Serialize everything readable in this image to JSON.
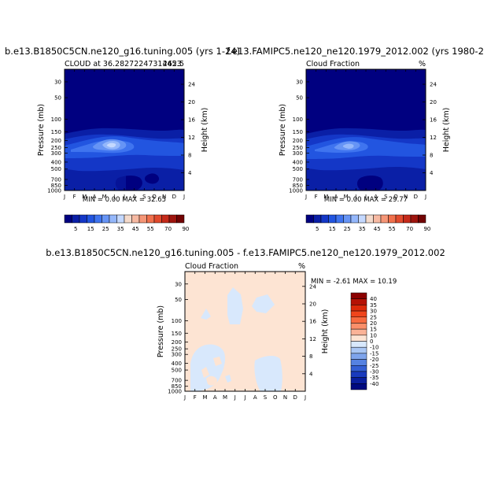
{
  "figure": {
    "panel_left_title": "b.e13.B1850C5CN.ne120_g16.tuning.005 (yrs 1-24)",
    "panel_right_title": "f.e13.FAMIPC5.ne120_ne120.1979_2012.002 (yrs 1980-2",
    "diff_title": "b.e13.B1850C5CN.ne120_g16.tuning.005 - f.e13.FAMIPC5.ne120_ne120.1979_2012.002"
  },
  "chart_data": [
    {
      "type": "heatmap",
      "title": "b.e13.B1850C5CN.ne120_g16.tuning.005 (yrs 1-24)",
      "subtitle_left": "CLOUD at 36.28272247314453",
      "subtitle_right": "262.5",
      "stats": "MIN =    0.00 MAX =   32.65",
      "min": 0.0,
      "max": 32.65,
      "xlabel": "",
      "ylabel": "Pressure (mb)",
      "ylabel_right": "Height (km)",
      "x_ticks": [
        "J",
        "F",
        "M",
        "A",
        "M",
        "J",
        "J",
        "A",
        "S",
        "O",
        "N",
        "D",
        "J"
      ],
      "y_ticks": [
        30,
        50,
        100,
        150,
        200,
        250,
        300,
        400,
        500,
        700,
        850,
        1000
      ],
      "y_ticks_right": [
        24,
        20,
        16,
        12,
        8,
        4
      ],
      "ylim": [
        1000,
        20
      ],
      "y_scale": "log",
      "colorbar_labels": [
        "5",
        "15",
        "25",
        "35",
        "45",
        "55",
        "70",
        "90"
      ],
      "colorbar_levels": [
        0,
        5,
        10,
        15,
        20,
        25,
        30,
        35,
        40,
        45,
        50,
        55,
        60,
        70,
        80,
        90,
        100
      ],
      "colors": [
        "#000080",
        "#0a1fa6",
        "#1437c7",
        "#2255e0",
        "#3f74ef",
        "#6694f5",
        "#94b7fb",
        "#c4d8fe",
        "#f4dacb",
        "#f6b9a2",
        "#f59677",
        "#f0704c",
        "#e14a2d",
        "#c52a1a",
        "#9e150e",
        "#720303"
      ]
    },
    {
      "type": "heatmap",
      "title": "f.e13.FAMIPC5.ne120_ne120.1979_2012.002 (yrs 1980-2",
      "subtitle_left": "Cloud Fraction",
      "subtitle_right": "%",
      "stats": "MIN =    0.00 MAX =   29.77",
      "min": 0.0,
      "max": 29.77,
      "xlabel": "",
      "ylabel": "Pressure (mb)",
      "ylabel_right": "Height (km)",
      "x_ticks": [
        "J",
        "F",
        "M",
        "A",
        "M",
        "J",
        "J",
        "A",
        "S",
        "O",
        "N",
        "D",
        "J"
      ],
      "y_ticks": [
        30,
        50,
        100,
        150,
        200,
        250,
        300,
        400,
        500,
        700,
        850,
        1000
      ],
      "y_ticks_right": [
        24,
        20,
        16,
        12,
        8,
        4
      ],
      "ylim": [
        1000,
        20
      ],
      "y_scale": "log",
      "colorbar_labels": [
        "5",
        "15",
        "25",
        "35",
        "45",
        "55",
        "70",
        "90"
      ],
      "colorbar_levels": [
        0,
        5,
        10,
        15,
        20,
        25,
        30,
        35,
        40,
        45,
        50,
        55,
        60,
        70,
        80,
        90,
        100
      ]
    },
    {
      "type": "heatmap",
      "title": "b.e13.B1850C5CN.ne120_g16.tuning.005 - f.e13.FAMIPC5.ne120_ne120.1979_2012.002",
      "subtitle_left": "Cloud Fraction",
      "subtitle_right": "%",
      "stats": "MIN =   -2.61 MAX =   10.19",
      "min": -2.61,
      "max": 10.19,
      "xlabel": "",
      "ylabel": "Pressure (mb)",
      "ylabel_right": "Height (km)",
      "x_ticks": [
        "J",
        "F",
        "M",
        "A",
        "M",
        "J",
        "J",
        "A",
        "S",
        "O",
        "N",
        "D",
        "J"
      ],
      "y_ticks": [
        30,
        50,
        100,
        150,
        200,
        250,
        300,
        400,
        500,
        700,
        850,
        1000
      ],
      "y_ticks_right": [
        24,
        20,
        16,
        12,
        8,
        4
      ],
      "ylim": [
        1000,
        20
      ],
      "y_scale": "log",
      "legend_placement": "right",
      "colorbar_labels": [
        "40",
        "35",
        "30",
        "25",
        "20",
        "15",
        "10",
        "0",
        "-10",
        "-15",
        "-20",
        "-25",
        "-30",
        "-35",
        "-40"
      ],
      "colors": [
        "#8b0000",
        "#b51205",
        "#dc2a0a",
        "#f0451c",
        "#f76a3f",
        "#fa8f6a",
        "#fbb397",
        "#fde4d3",
        "#d8e8fc",
        "#a9c6f4",
        "#7ea4ec",
        "#5582e2",
        "#335fd4",
        "#1a3bbd",
        "#0a1f9e",
        "#000a80"
      ]
    }
  ]
}
